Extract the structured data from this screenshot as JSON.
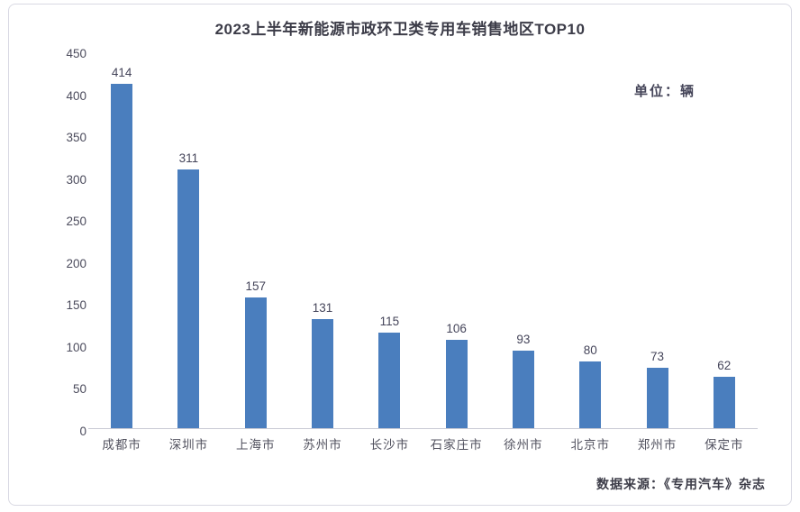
{
  "card": {
    "title": "2023上半年新能源市政环卫类专用车销售地区TOP10",
    "unit_label": "单位：辆",
    "source_label": "数据来源：《专用汽车》杂志"
  },
  "chart_data": {
    "type": "bar",
    "title": "2023上半年新能源市政环卫类专用车销售地区TOP10",
    "categories": [
      "成都市",
      "深圳市",
      "上海市",
      "苏州市",
      "长沙市",
      "石家庄市",
      "徐州市",
      "北京市",
      "郑州市",
      "保定市"
    ],
    "values": [
      414,
      311,
      157,
      131,
      115,
      106,
      93,
      80,
      73,
      62
    ],
    "unit": "辆",
    "xlabel": "",
    "ylabel": "",
    "ylim": [
      0,
      450
    ],
    "yticks": [
      0,
      50,
      100,
      150,
      200,
      250,
      300,
      350,
      400,
      450
    ],
    "grid": false,
    "legend_position": "none",
    "data_labels": true,
    "bar_color": "#4a7ebe",
    "source": "数据来源：《专用汽车》杂志"
  }
}
